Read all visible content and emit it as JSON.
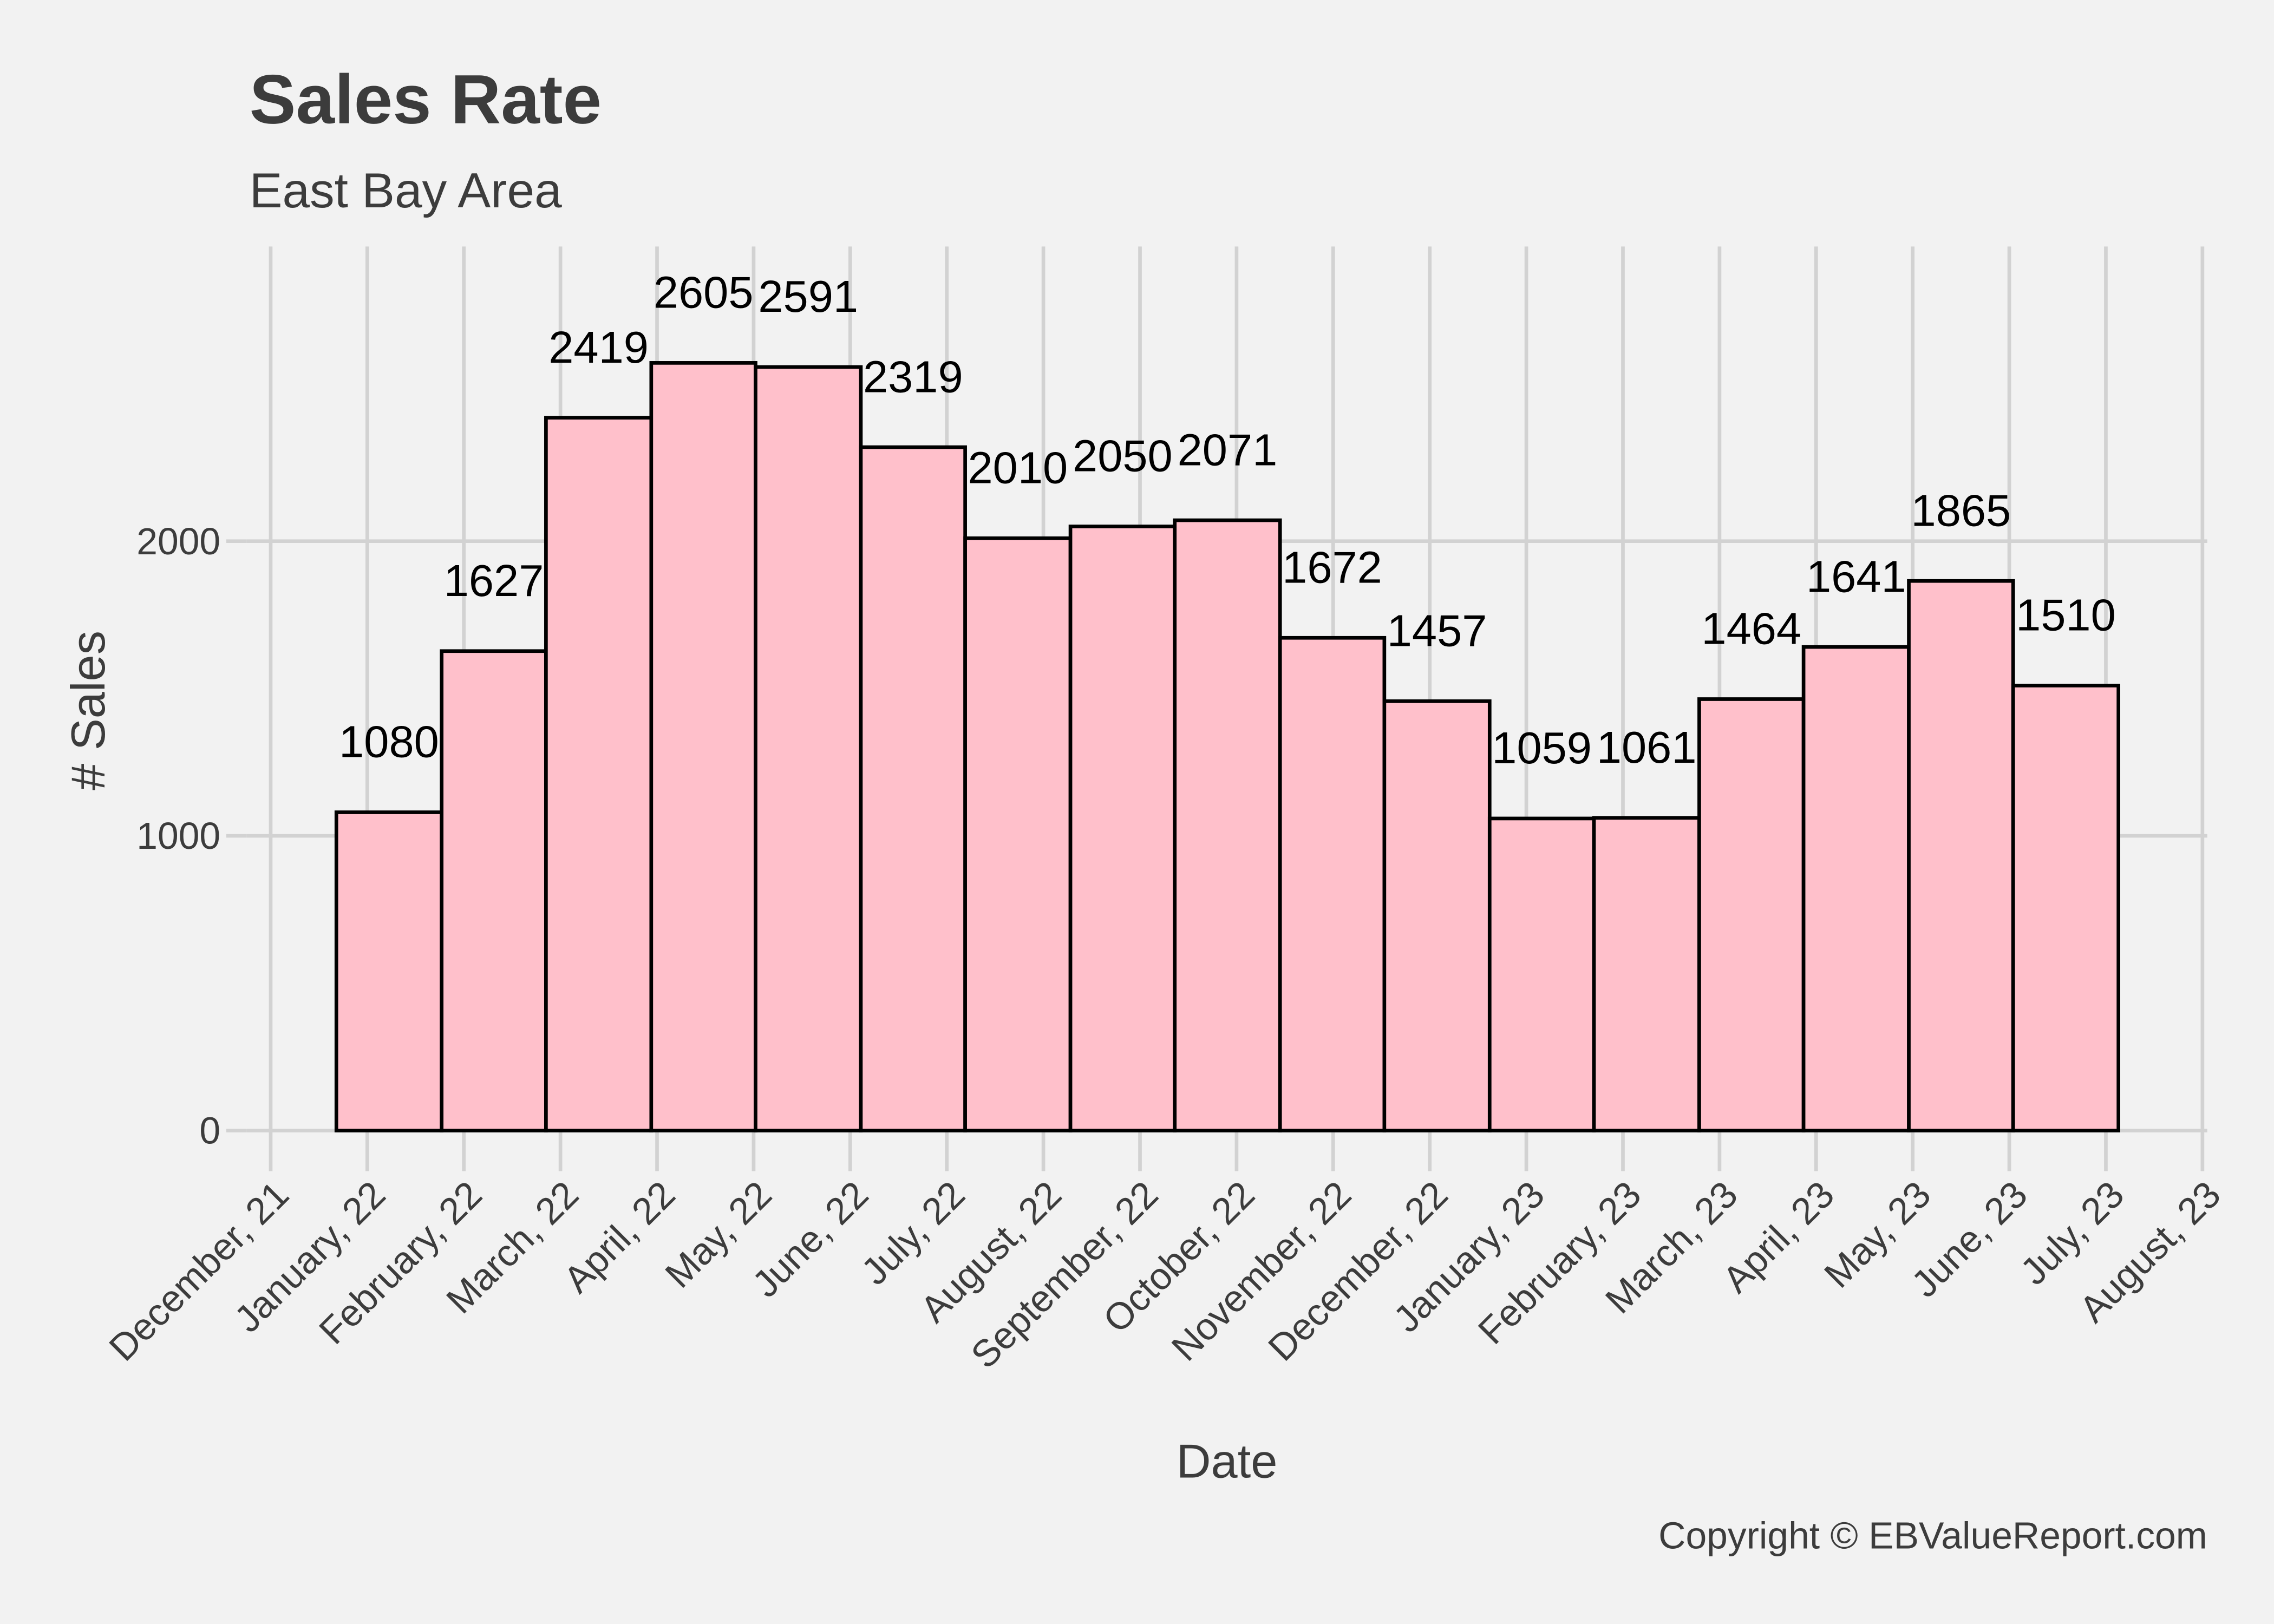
{
  "chart_data": {
    "type": "histogram",
    "title": "Sales Rate",
    "subtitle": "East Bay Area",
    "x_label": "Date",
    "y_label": "# Sales",
    "caption": "Copyright  © EBValueReport.com",
    "bins": [
      0.68,
      1.77,
      2.85,
      3.94,
      5.02,
      6.11,
      7.19,
      8.28,
      9.36,
      10.45,
      11.53,
      12.62,
      13.7,
      14.79,
      15.87,
      16.96,
      18.04,
      19.13
    ],
    "values": [
      1080,
      1627,
      2419,
      2605,
      2591,
      2319,
      2010,
      2050,
      2071,
      1672,
      1457,
      1059,
      1061,
      1464,
      1641,
      1865,
      1510
    ],
    "color": "#ffc0cb",
    "edge_color": "#000000",
    "xlim": [
      -0.25,
      20.05
    ],
    "xticks": [
      {
        "value": 0,
        "label": "December, 21"
      },
      {
        "value": 1,
        "label": "January, 22"
      },
      {
        "value": 2,
        "label": "February, 22"
      },
      {
        "value": 3,
        "label": "March, 22"
      },
      {
        "value": 4,
        "label": "April, 22"
      },
      {
        "value": 5,
        "label": "May, 22"
      },
      {
        "value": 6,
        "label": "June, 22"
      },
      {
        "value": 7,
        "label": "July, 22"
      },
      {
        "value": 8,
        "label": "August, 22"
      },
      {
        "value": 9,
        "label": "September, 22"
      },
      {
        "value": 10,
        "label": "October, 22"
      },
      {
        "value": 11,
        "label": "November, 22"
      },
      {
        "value": 12,
        "label": "December, 22"
      },
      {
        "value": 13,
        "label": "January, 23"
      },
      {
        "value": 14,
        "label": "February, 23"
      },
      {
        "value": 15,
        "label": "March, 23"
      },
      {
        "value": 16,
        "label": "April, 23"
      },
      {
        "value": 17,
        "label": "May, 23"
      },
      {
        "value": 18,
        "label": "June, 23"
      },
      {
        "value": 19,
        "label": "July, 23"
      },
      {
        "value": 20,
        "label": "August, 23"
      }
    ],
    "ylim": [
      -100,
      3000
    ],
    "yticks": [
      0,
      1000,
      2000
    ],
    "grid": true
  }
}
